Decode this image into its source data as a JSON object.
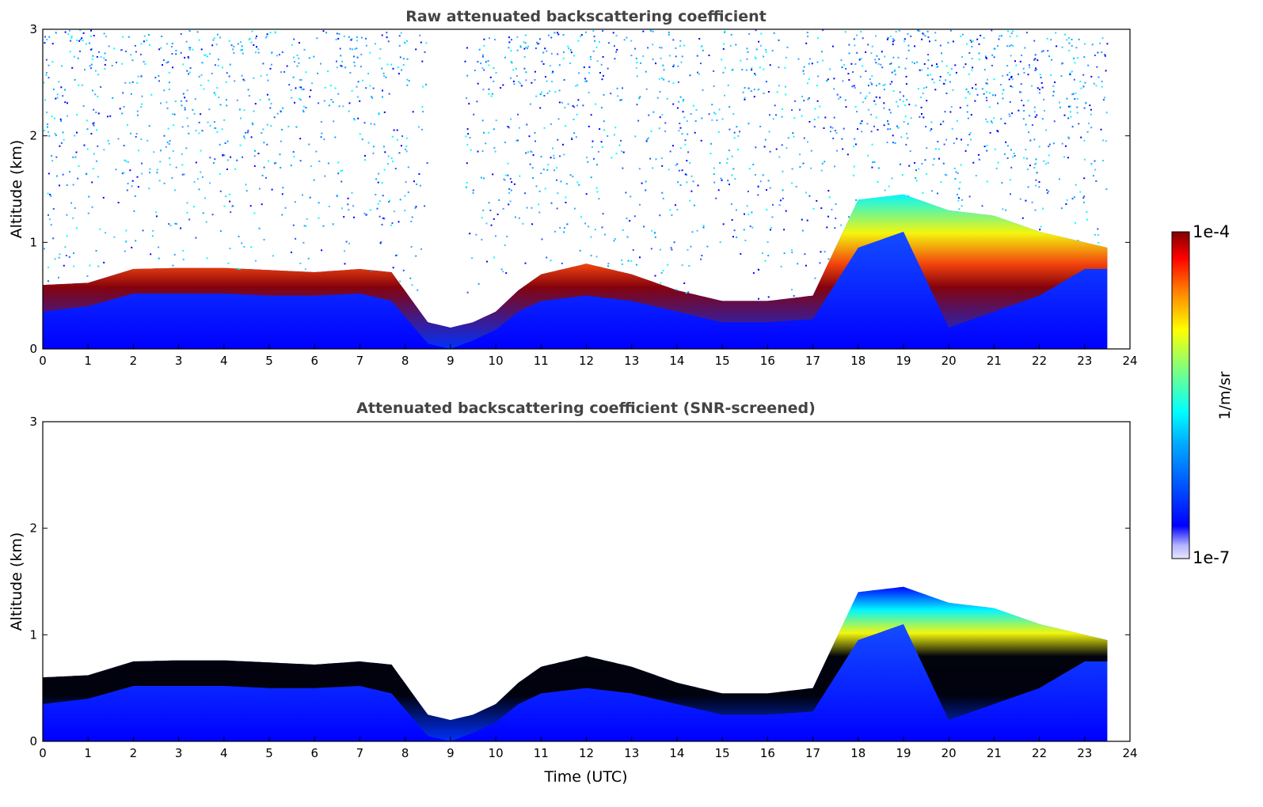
{
  "chart_data": [
    {
      "type": "heatmap",
      "title": "Raw attenuated backscattering coefficient",
      "xlabel": "",
      "ylabel": "Altitude (km)",
      "xlim": [
        0,
        24
      ],
      "ylim": [
        0,
        3
      ],
      "xticks": [
        "0",
        "1",
        "2",
        "3",
        "4",
        "5",
        "6",
        "7",
        "8",
        "9",
        "10",
        "11",
        "12",
        "13",
        "14",
        "15",
        "16",
        "17",
        "18",
        "19",
        "20",
        "21",
        "22",
        "23",
        "24"
      ],
      "yticks": [
        "0",
        "1",
        "2",
        "3"
      ],
      "grid": false,
      "data_end_hour": 23.5,
      "noise_gap_hours": [
        8.5,
        9.3
      ],
      "layer": {
        "x": [
          0,
          1,
          2,
          3,
          4,
          5,
          6,
          7,
          7.7,
          8.5,
          9,
          9.5,
          10,
          10.5,
          11,
          12,
          13,
          14,
          15,
          16,
          17,
          18,
          19,
          20,
          21,
          22,
          23,
          23.5
        ],
        "top_km": [
          0.6,
          0.62,
          0.75,
          0.76,
          0.76,
          0.74,
          0.72,
          0.75,
          0.72,
          0.25,
          0.2,
          0.25,
          0.35,
          0.55,
          0.7,
          0.8,
          0.7,
          0.55,
          0.45,
          0.45,
          0.5,
          1.4,
          1.45,
          1.3,
          1.25,
          1.1,
          1.0,
          0.95
        ],
        "peak_km": [
          0.45,
          0.5,
          0.62,
          0.62,
          0.62,
          0.6,
          0.6,
          0.62,
          0.55,
          0.15,
          0.1,
          0.18,
          0.28,
          0.45,
          0.55,
          0.6,
          0.55,
          0.45,
          0.35,
          0.35,
          0.38,
          1.05,
          1.2,
          0.3,
          0.45,
          0.6,
          0.85,
          0.85
        ]
      }
    },
    {
      "type": "heatmap",
      "title": "Attenuated backscattering coefficient (SNR-screened)",
      "xlabel": "Time (UTC)",
      "ylabel": "Altitude (km)",
      "xlim": [
        0,
        24
      ],
      "ylim": [
        0,
        3
      ],
      "xticks": [
        "0",
        "1",
        "2",
        "3",
        "4",
        "5",
        "6",
        "7",
        "8",
        "9",
        "10",
        "11",
        "12",
        "13",
        "14",
        "15",
        "16",
        "17",
        "18",
        "19",
        "20",
        "21",
        "22",
        "23",
        "24"
      ],
      "yticks": [
        "0",
        "1",
        "2",
        "3"
      ],
      "grid": false,
      "data_end_hour": 23.5
    }
  ],
  "colorbar": {
    "label": "1/m/sr",
    "max_label": "1e-4",
    "min_label": "1e-7",
    "scale": "log",
    "colormap": "jet",
    "colors": [
      "#e6e6ff",
      "#0000ff",
      "#00aaff",
      "#00ffff",
      "#7fff7f",
      "#ffff00",
      "#ff7f00",
      "#ff0000",
      "#800000"
    ]
  }
}
